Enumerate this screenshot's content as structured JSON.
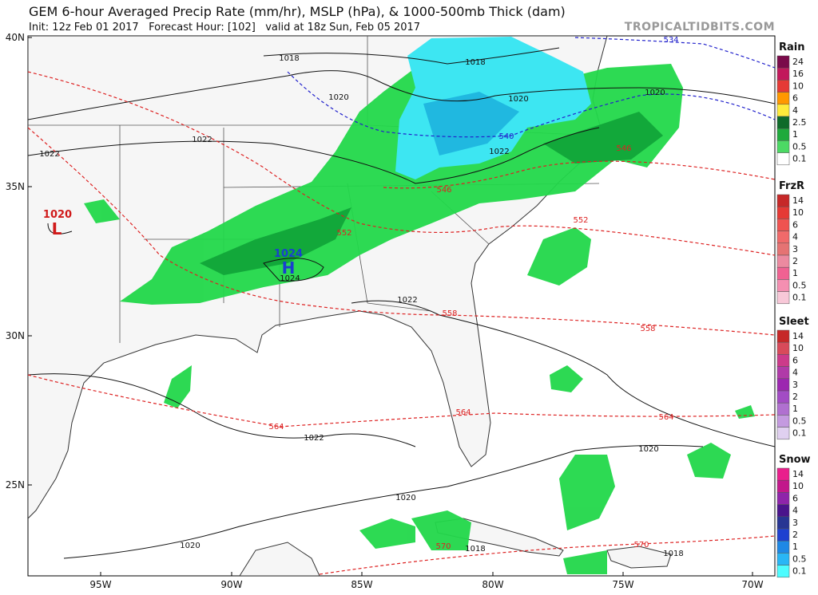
{
  "header": {
    "title": "GEM 6-hour Averaged Precip Rate (mm/hr), MSLP (hPa), & 1000-500mb Thick (dam)",
    "subtitle": "Init: 12z Feb 01 2017   Forecast Hour: [102]   valid at 18z Sun, Feb 05 2017",
    "site": "TROPICALTIDBITS.COM"
  },
  "map": {
    "lat_labels": [
      "40N",
      "35N",
      "30N",
      "25N"
    ],
    "lon_labels": [
      "95W",
      "90W",
      "85W",
      "80W",
      "75W",
      "70W"
    ],
    "pressure_labels": [
      "1018",
      "1018",
      "1020",
      "1020",
      "1020",
      "1022",
      "1022",
      "1022",
      "1022",
      "1022",
      "1020",
      "1020",
      "1020",
      "1018",
      "1018",
      "1024"
    ],
    "thickness_labels": [
      "534",
      "540",
      "546",
      "546",
      "552",
      "552",
      "558",
      "558",
      "564",
      "564",
      "564",
      "570",
      "570"
    ],
    "highs": [
      {
        "value": "1024",
        "symbol": "H"
      }
    ],
    "lows": [
      {
        "value": "1020",
        "symbol": "L"
      }
    ]
  },
  "legend": [
    {
      "title": "Rain",
      "levels": [
        24,
        16,
        10,
        6,
        4,
        2.5,
        1,
        0.5,
        0.1
      ]
    },
    {
      "title": "FrzR",
      "levels": [
        14,
        10,
        6,
        4,
        3,
        2,
        1,
        0.5,
        0.1
      ]
    },
    {
      "title": "Sleet",
      "levels": [
        14,
        10,
        6,
        4,
        3,
        2,
        1,
        0.5,
        0.1
      ]
    },
    {
      "title": "Snow",
      "levels": [
        14,
        10,
        6,
        4,
        3,
        2,
        1,
        0.5,
        0.1
      ]
    }
  ]
}
